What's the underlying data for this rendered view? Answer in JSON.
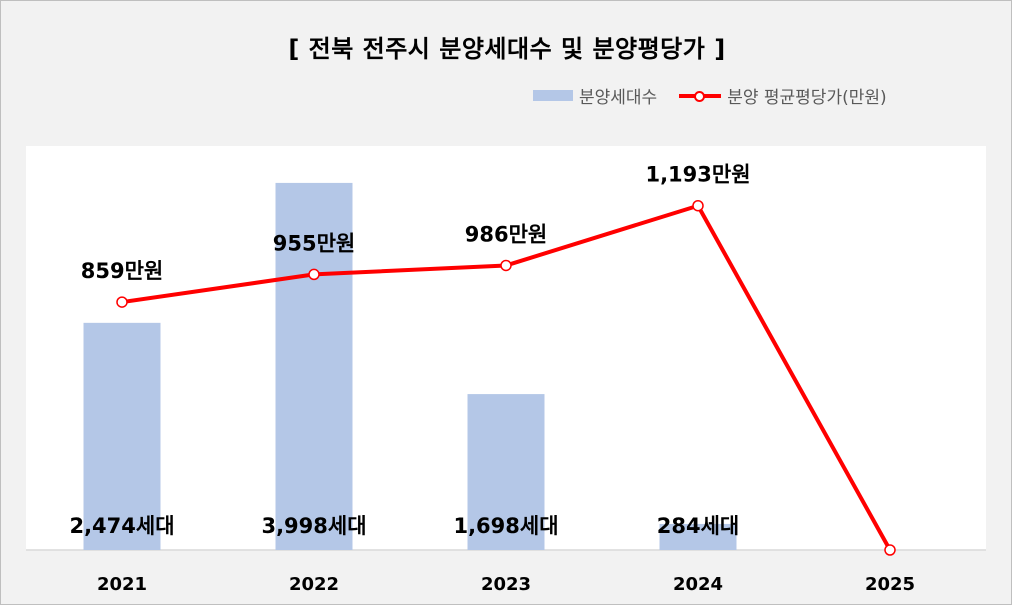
{
  "title": "[ 전북 전주시 분양세대수 및 분양평당가 ]",
  "legend": {
    "bar_label": "분양세대수",
    "line_label": "분양 평균평당가(만원)"
  },
  "colors": {
    "bar": "#b4c7e7",
    "line": "#ff0000",
    "plot_background": "#ffffff",
    "page_background": "#f2f2f2"
  },
  "chart_data": {
    "type": "bar",
    "categories": [
      "2021",
      "2022",
      "2023",
      "2024",
      "2025"
    ],
    "series": [
      {
        "name": "분양세대수",
        "type": "bar",
        "values": [
          2474,
          3998,
          1698,
          284,
          null
        ],
        "data_labels": [
          "2,474세대",
          "3,998세대",
          "1,698세대",
          "284세대",
          ""
        ]
      },
      {
        "name": "분양 평균평당가(만원)",
        "type": "line",
        "values": [
          859,
          955,
          986,
          1193,
          0
        ],
        "data_labels": [
          "859만원",
          "955만원",
          "986만원",
          "1,193만원",
          ""
        ]
      }
    ],
    "title": "[ 전북 전주시 분양세대수 및 분양평당가 ]",
    "xlabel": "",
    "ylabel": "",
    "bar_ylim": [
      0,
      4400
    ],
    "line_ylim": [
      0,
      1400
    ],
    "grid": false,
    "legend_position": "top-right"
  }
}
